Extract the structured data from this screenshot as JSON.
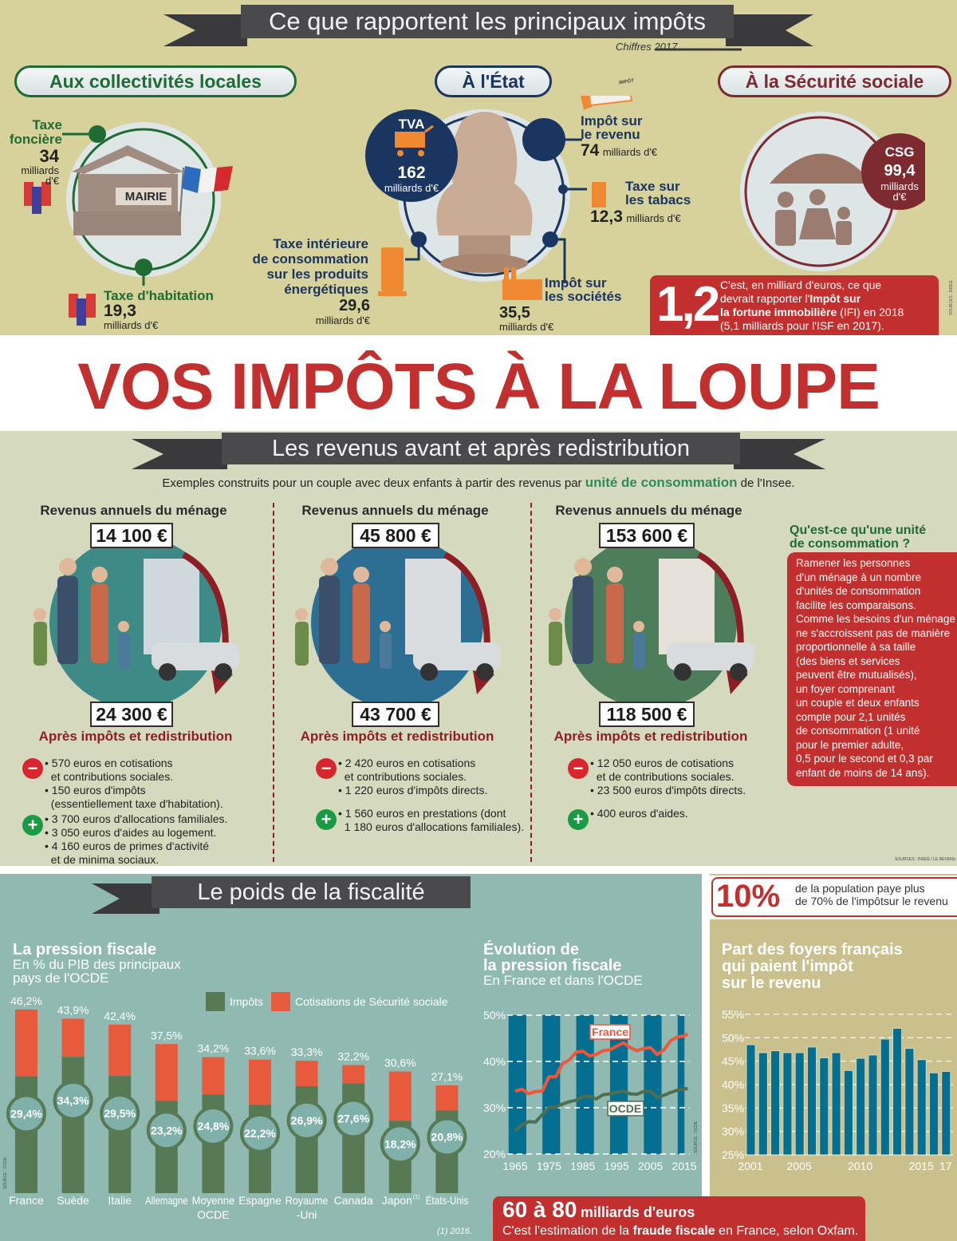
{
  "top": {
    "title": "Ce que rapportent les principaux impôts",
    "subtitle": "Chiffres 2017",
    "local": {
      "heading": "Aux collectivités locales",
      "mairie_sign": "MAIRIE",
      "fonciere": {
        "label_1": "Taxe",
        "label_2": "foncière",
        "value": "34",
        "unit_1": "milliards",
        "unit_2": "d'€"
      },
      "habitation": {
        "label": "Taxe d'habitation",
        "value": "19,3",
        "unit": "milliards d'€"
      }
    },
    "etat": {
      "heading": "À l'État",
      "tva": {
        "label": "TVA",
        "value": "162",
        "unit": "milliards d'€"
      },
      "revenu": {
        "label_1": "Impôt sur",
        "label_2": "le revenu",
        "value": "74",
        "unit": "milliards d'€",
        "icon_text": "IMPÔT"
      },
      "tabacs": {
        "label_1": "Taxe sur",
        "label_2": "les tabacs",
        "value": "12,3",
        "unit": "milliards d'€"
      },
      "societes": {
        "label_1": "Impôt sur",
        "label_2": "les sociétés",
        "value": "35,5",
        "unit": "milliards d'€"
      },
      "energie": {
        "label_1": "Taxe intérieure",
        "label_2": "de consommation",
        "label_3": "sur les produits",
        "label_4": "énergétiques",
        "value": "29,6",
        "unit": "milliards d'€"
      }
    },
    "secu": {
      "heading": "À la Sécurité sociale",
      "csg": {
        "label": "CSG",
        "value": "99,4",
        "unit_1": "milliards",
        "unit_2": "d'€"
      }
    },
    "ifi": {
      "value": "1,2",
      "line_1": "C'est, en milliard d'euros, ce que",
      "line_2a": "devrait rapporter l'",
      "line_2b": "Impôt sur",
      "line_3a": "la fortune immobilière",
      "line_3b": " (IFI) en 2018",
      "line_4": "(5,1 milliards pour l'ISF en 2017)."
    },
    "source": "SOURCES : INSEE"
  },
  "banner": "VOS IMPÔTS À LA LOUPE",
  "mid": {
    "title": "Les revenus avant et après redistribution",
    "intro_a": "Exemples construits pour un couple avec deux enfants à partir des revenus par ",
    "intro_b": "unité de consommation",
    "intro_c": " de l'Insee.",
    "columns": [
      {
        "header": "Revenus annuels du ménage",
        "before": "14 100 €",
        "after": "24 300 €",
        "after_label": "Après impôts et redistribution",
        "minus": [
          "• 570 euros en cotisations",
          "  et contributions sociales.",
          "• 150 euros d'impôts",
          "  (essentiellement taxe d'habitation)."
        ],
        "plus": [
          "• 3 700 euros d'allocations familiales.",
          "• 3 050 euros d'aides au logement.",
          "• 4 160 euros de primes d'activité",
          "  et de minima sociaux."
        ]
      },
      {
        "header": "Revenus annuels du ménage",
        "before": "45 800 €",
        "after": "43 700 €",
        "after_label": "Après impôts et redistribution",
        "minus": [
          "• 2 420 euros en cotisations",
          "  et contributions sociales.",
          "• 1 220 euros d'impôts directs."
        ],
        "plus": [
          "• 1 560 euros en prestations (dont",
          "  1 180 euros d'allocations familiales)."
        ]
      },
      {
        "header": "Revenus annuels du ménage",
        "before": "153 600 €",
        "after": "118 500 €",
        "after_label": "Après impôts et redistribution",
        "minus": [
          "• 12 050 euros de cotisations",
          "  et de contributions sociales.",
          "• 23 500 euros d'impôts directs."
        ],
        "plus": [
          "• 400 euros d'aides."
        ]
      }
    ],
    "sidebar": {
      "title_1": "Qu'est-ce qu'une unité",
      "title_2": "de consommation ?",
      "body": [
        "Ramener les personnes",
        "d'un ménage à un nombre",
        "d'unités de consommation",
        "facilite les comparaisons.",
        "Comme les besoins d'un ménage",
        "ne s'accroissent pas de manière",
        "proportionnelle à sa taille",
        "(des biens et services",
        "peuvent être mutualisés),",
        "un foyer comprenant",
        "un couple et deux enfants",
        "compte pour 2,1 unités",
        "de consommation (1 unité",
        "pour le premier adulte,",
        "0,5 pour le second et 0,3 par",
        "enfant de moins de 14 ans)."
      ]
    },
    "source": "SOURCES : INSEE / LE REVENU"
  },
  "bottom": {
    "title": "Le poids de la fiscalité",
    "stat": {
      "value": "10%",
      "line_1": "de la population paye plus",
      "line_2": "de 70% de l'impôtsur le revenu"
    },
    "fraud": {
      "value": "60 à 80",
      "unit": "milliards d'euros",
      "line_a": "C'est l'estimation de la ",
      "line_b": "fraude fiscale",
      "line_c": " en France, selon Oxfam."
    }
  },
  "colors": {
    "red": "#c1302f",
    "green": "#577a55",
    "orange": "#e85a3c",
    "blue": "#056f91",
    "teal": "#8fb9b1",
    "sand": "#c9c08e"
  },
  "chart_data": [
    {
      "type": "bar",
      "stacked": true,
      "title": "La pression fiscale",
      "subtitle_1": "En % du PIB des principaux",
      "subtitle_2": "pays de l'OCDE",
      "legend": [
        "Impôts",
        "Cotisations de Sécurité sociale"
      ],
      "categories": [
        "France",
        "Suède",
        "Italie",
        "Allemagne",
        "Moyenne|OCDE",
        "Espagne",
        "Royaume|-Uni",
        "Canada",
        "Japon",
        "États-Unis"
      ],
      "footnote_marker_category": "Japon",
      "footnote_marker": "(1)",
      "totals": [
        46.2,
        43.9,
        42.4,
        37.5,
        34.2,
        33.6,
        33.3,
        32.2,
        30.6,
        27.1
      ],
      "total_labels": [
        "46,2%",
        "43,9%",
        "42,4%",
        "37,5%",
        "34,2%",
        "33,6%",
        "33,3%",
        "32,2%",
        "30,6%",
        "27,1%"
      ],
      "impots": [
        29.4,
        34.3,
        29.5,
        23.2,
        24.8,
        22.2,
        26.9,
        27.6,
        18.2,
        20.8
      ],
      "impots_labels": [
        "29,4%",
        "34,3%",
        "29,5%",
        "23,2%",
        "24,8%",
        "22,2%",
        "26,9%",
        "27,6%",
        "18,2%",
        "20,8%"
      ],
      "footnote": "(1) 2016.",
      "source": "SOURCE : OCDE"
    },
    {
      "type": "line",
      "title_1": "Évolution de",
      "title_2": "la pression fiscale",
      "subtitle": "En France et dans l'OCDE",
      "ylim": [
        20,
        50
      ],
      "yticks": [
        "20%",
        "30%",
        "40%",
        "50%"
      ],
      "xticks": [
        "1965",
        "1975",
        "1985",
        "1995",
        "2005",
        "2015"
      ],
      "series": [
        {
          "name": "France",
          "x": [
            1965,
            1967,
            1969,
            1971,
            1973,
            1975,
            1977,
            1979,
            1981,
            1983,
            1985,
            1987,
            1989,
            1991,
            1993,
            1995,
            1997,
            1999,
            2001,
            2003,
            2005,
            2007,
            2009,
            2011,
            2013,
            2015,
            2016
          ],
          "y": [
            33.6,
            34.0,
            33.0,
            33.5,
            33.6,
            36.7,
            36.7,
            39.5,
            40.3,
            42.0,
            42.2,
            41.2,
            41.5,
            42.3,
            42.5,
            43.3,
            44.0,
            43.0,
            42.3,
            42.8,
            43.0,
            41.5,
            42.5,
            44.5,
            45.3,
            45.5,
            46.0
          ]
        },
        {
          "name": "OCDE",
          "x": [
            1965,
            1967,
            1969,
            1971,
            1973,
            1975,
            1977,
            1979,
            1981,
            1983,
            1985,
            1987,
            1989,
            1991,
            1993,
            1995,
            1997,
            1999,
            2001,
            2003,
            2005,
            2007,
            2009,
            2011,
            2013,
            2015,
            2016
          ],
          "y": [
            25.0,
            26.3,
            27.0,
            26.9,
            28.5,
            30.1,
            30.1,
            30.8,
            31.3,
            31.6,
            32.4,
            32.4,
            31.9,
            32.8,
            33.0,
            33.3,
            33.6,
            33.0,
            32.9,
            33.5,
            33.6,
            32.2,
            32.7,
            33.3,
            33.8,
            34.0,
            34.2
          ]
        }
      ],
      "source": "SOURCE : OCDE"
    },
    {
      "type": "bar",
      "title_1": "Part des foyers français",
      "title_2": "qui paient l'impôt",
      "title_3": "sur le revenu",
      "ylim": [
        25,
        55
      ],
      "yticks": [
        "25%",
        "30%",
        "35%",
        "40%",
        "45%",
        "50%",
        "55%"
      ],
      "categories": [
        2001,
        2002,
        2003,
        2004,
        2005,
        2006,
        2007,
        2008,
        2009,
        2010,
        2011,
        2012,
        2013,
        2014,
        2015,
        2016,
        2017
      ],
      "xticks": [
        "2001",
        "2005",
        "2010",
        "2015",
        "17"
      ],
      "values": [
        48.5,
        46.8,
        47.2,
        46.8,
        46.8,
        48.0,
        45.7,
        46.8,
        43.0,
        45.6,
        46.3,
        49.7,
        52.0,
        47.7,
        45.3,
        42.5,
        42.8
      ]
    }
  ]
}
